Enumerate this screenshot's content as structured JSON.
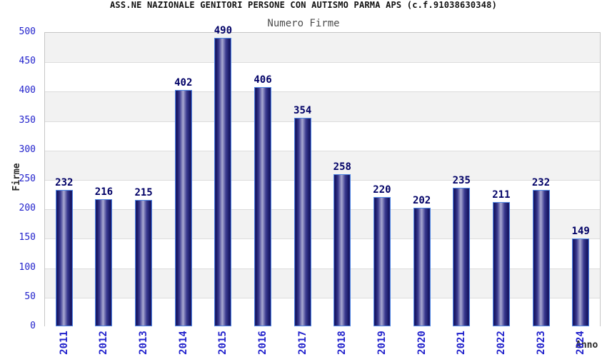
{
  "header": {
    "title": "ASS.NE NAZIONALE GENITORI PERSONE CON AUTISMO PARMA APS (c.f.91038630348)",
    "subtitle": "Numero Firme"
  },
  "chart_data": {
    "type": "bar",
    "title": "ASS.NE NAZIONALE GENITORI PERSONE CON AUTISMO PARMA APS (c.f.91038630348)",
    "subtitle": "Numero Firme",
    "categories": [
      "2011",
      "2012",
      "2013",
      "2014",
      "2015",
      "2016",
      "2017",
      "2018",
      "2019",
      "2020",
      "2021",
      "2022",
      "2023",
      "2024"
    ],
    "values": [
      232,
      216,
      215,
      402,
      490,
      406,
      354,
      258,
      220,
      202,
      235,
      211,
      232,
      149
    ],
    "xlabel": "Anno",
    "ylabel": "Firme",
    "ylim": [
      0,
      500
    ],
    "ytick_step": 50,
    "yticks": [
      0,
      50,
      100,
      150,
      200,
      250,
      300,
      350,
      400,
      450,
      500
    ],
    "grid": true,
    "legend": "none",
    "value_labels_shown": true,
    "xtick_rotation_deg": 90,
    "colors": {
      "bar_dark": "#14145f",
      "bar_highlight": "#a9a9d2",
      "bar_border": "#4f86e3",
      "value_label": "#000066",
      "axis_tick_text": "#2222cc",
      "band_shaded": "#f2f2f2",
      "band_plain": "#ffffff",
      "grid_line": "#dcdcdc",
      "plot_border": "#c6c6c6",
      "title_text": "#111111",
      "subtitle_text": "#4d4d4d",
      "axis_title_text": "#2b2b2b"
    }
  }
}
